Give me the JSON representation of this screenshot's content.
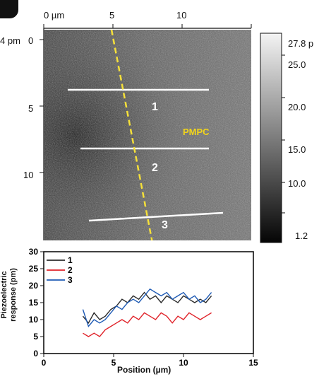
{
  "map": {
    "x_axis_label": "0 µm",
    "x_ticks": [
      "5",
      "10"
    ],
    "y_axis_label": "4 pm",
    "y_ticks": [
      "0",
      "5",
      "10"
    ],
    "annotation": "PMPC",
    "line_labels": [
      "1",
      "2",
      "3"
    ],
    "colors": {
      "line": "#ffffff",
      "dashed": "#f5e03a",
      "annotation": "#f2d51b"
    }
  },
  "colorbar": {
    "labels": [
      "27.8 p",
      "25.0",
      "20.0",
      "15.0",
      "10.0",
      "1.2"
    ]
  },
  "chart_data": {
    "type": "line",
    "title": "",
    "xlabel": "Position (µm)",
    "ylabel": "Piezoelectric response (pm)",
    "ylabel_lines": [
      "Piezoelectric",
      "response (pm)"
    ],
    "xlim": [
      0,
      15
    ],
    "ylim": [
      0,
      30
    ],
    "xticks": [
      "0",
      "5",
      "10",
      "15"
    ],
    "yticks": [
      "0",
      "5",
      "10",
      "15",
      "20",
      "25",
      "30"
    ],
    "legend_position": "top-left",
    "x": [
      2.8,
      3.2,
      3.6,
      4.0,
      4.4,
      4.8,
      5.2,
      5.6,
      6.0,
      6.4,
      6.8,
      7.2,
      7.6,
      8.0,
      8.4,
      8.8,
      9.2,
      9.6,
      10.0,
      10.4,
      10.8,
      11.2,
      11.6,
      12.0
    ],
    "series": [
      {
        "name": "1",
        "color": "#2b2b2b",
        "values": [
          11,
          9,
          12,
          10,
          11,
          13,
          14,
          16,
          15,
          17,
          16,
          18,
          16,
          17,
          15,
          17,
          16,
          15,
          17,
          16,
          15,
          16,
          15,
          17
        ]
      },
      {
        "name": "2",
        "color": "#e0232a",
        "values": [
          6,
          5,
          6,
          5,
          7,
          8,
          9,
          10,
          9,
          11,
          10,
          12,
          11,
          10,
          12,
          11,
          9,
          11,
          10,
          12,
          11,
          10,
          11,
          12
        ]
      },
      {
        "name": "3",
        "color": "#1f5bb5",
        "values": [
          13,
          8,
          10,
          9,
          10,
          12,
          14,
          13,
          15,
          16,
          15,
          17,
          19,
          18,
          17,
          18,
          16,
          17,
          18,
          16,
          17,
          15,
          16,
          18
        ]
      }
    ]
  }
}
